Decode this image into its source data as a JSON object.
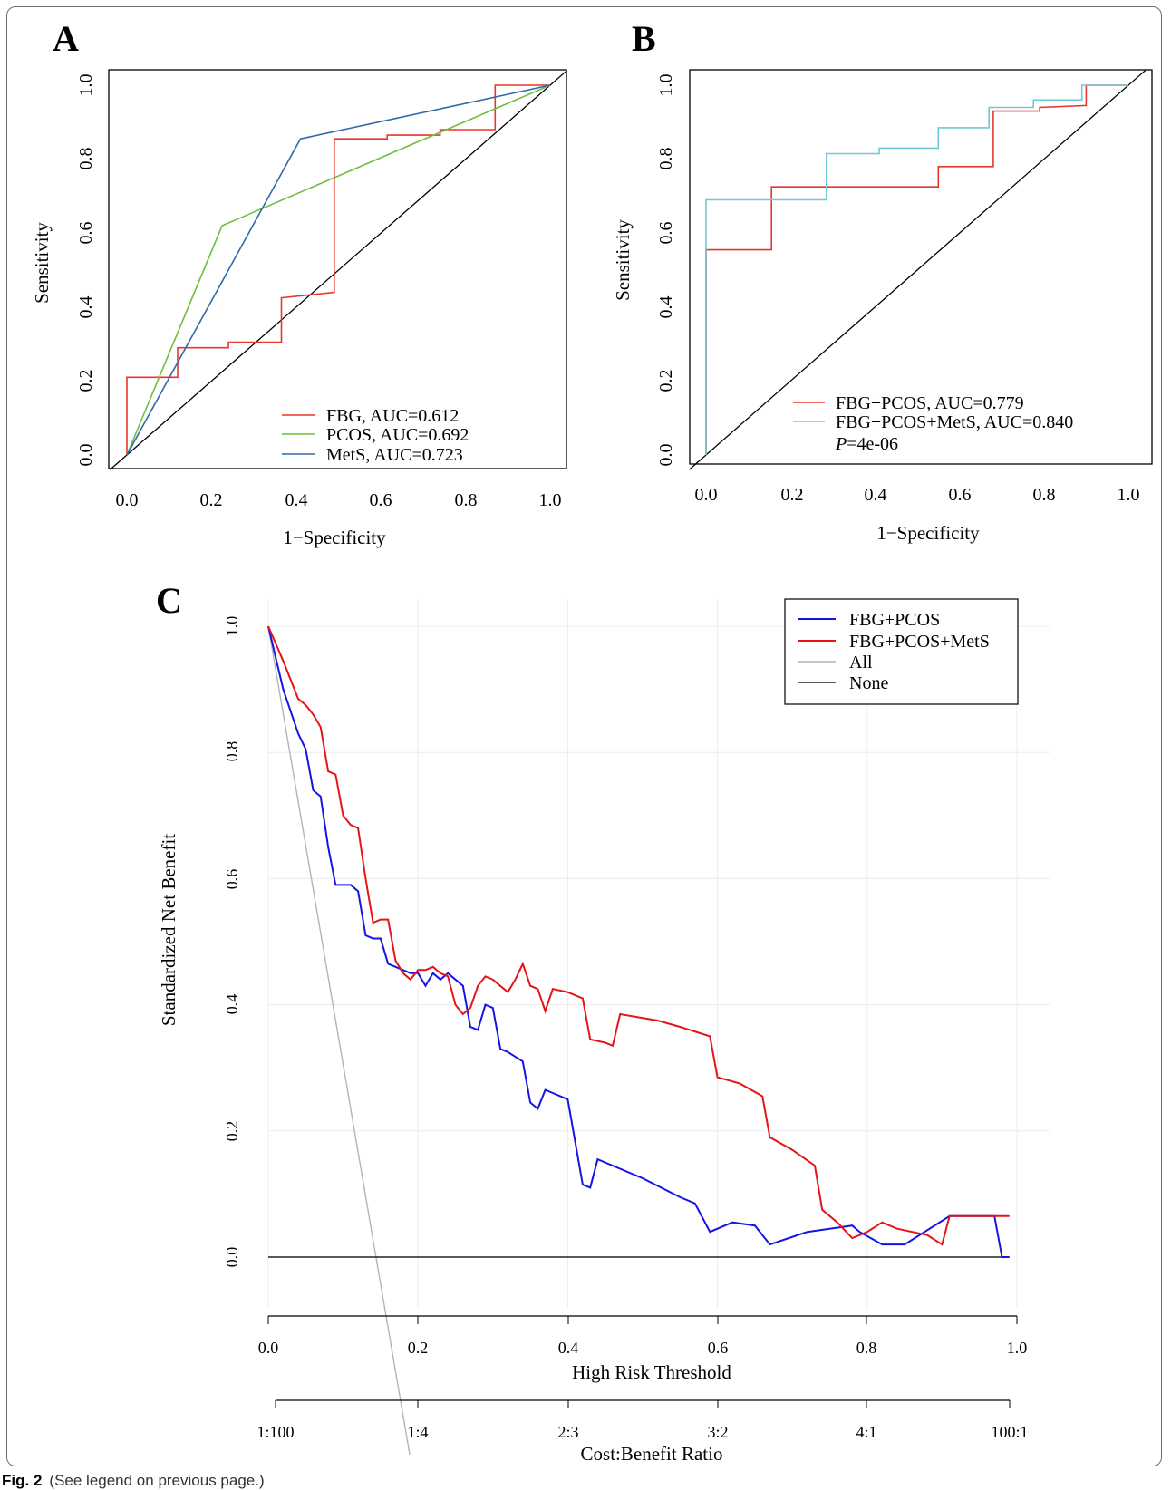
{
  "caption": {
    "label": "Fig. 2",
    "text": "(See legend on previous page.)"
  },
  "chart_data": [
    {
      "panel": "A",
      "type": "line",
      "xlabel": "1−Specificity",
      "ylabel": "Sensitivity",
      "xlim": [
        0,
        1
      ],
      "ylim": [
        0,
        1
      ],
      "xticks": [
        "0.0",
        "0.2",
        "0.4",
        "0.6",
        "0.8",
        "1.0"
      ],
      "yticks": [
        "0.0",
        "0.2",
        "0.4",
        "0.6",
        "0.8",
        "1.0"
      ],
      "legend_position": "bottom-right",
      "diagonal_color": "#000000",
      "series": [
        {
          "name": "FBG, AUC=0.612",
          "color": "#e8362c",
          "step": true,
          "points": [
            [
              0,
              0
            ],
            [
              0,
              0.21
            ],
            [
              0.12,
              0.21
            ],
            [
              0.12,
              0.29
            ],
            [
              0.24,
              0.29
            ],
            [
              0.24,
              0.305
            ],
            [
              0.365,
              0.305
            ],
            [
              0.365,
              0.425
            ],
            [
              0.49,
              0.44
            ],
            [
              0.49,
              0.855
            ],
            [
              0.615,
              0.855
            ],
            [
              0.615,
              0.865
            ],
            [
              0.74,
              0.865
            ],
            [
              0.74,
              0.88
            ],
            [
              0.87,
              0.88
            ],
            [
              0.87,
              1
            ],
            [
              1,
              1
            ]
          ]
        },
        {
          "name": "PCOS, AUC=0.692",
          "color": "#6cbf3c",
          "step": false,
          "points": [
            [
              0,
              0
            ],
            [
              0.225,
              0.62
            ],
            [
              1,
              1
            ]
          ]
        },
        {
          "name": "MetS, AUC=0.723",
          "color": "#2e6aa8",
          "step": false,
          "points": [
            [
              0,
              0
            ],
            [
              0.41,
              0.855
            ],
            [
              1,
              1
            ]
          ]
        }
      ]
    },
    {
      "panel": "B",
      "type": "line",
      "xlabel": "1−Specificity",
      "ylabel": "Sensitivity",
      "xlim": [
        0,
        1
      ],
      "ylim": [
        0,
        1
      ],
      "xticks": [
        "0.0",
        "0.2",
        "0.4",
        "0.6",
        "0.8",
        "1.0"
      ],
      "yticks": [
        "0.0",
        "0.2",
        "0.4",
        "0.6",
        "0.8",
        "1.0"
      ],
      "legend_position": "bottom-right",
      "annotation_prefix": "P",
      "annotation_value": "=4e-06",
      "series": [
        {
          "name": "FBG+PCOS, AUC=0.779",
          "color": "#e8362c",
          "step": true,
          "points": [
            [
              0,
              0
            ],
            [
              0,
              0.555
            ],
            [
              0.155,
              0.555
            ],
            [
              0.155,
              0.725
            ],
            [
              0.55,
              0.725
            ],
            [
              0.55,
              0.78
            ],
            [
              0.68,
              0.78
            ],
            [
              0.68,
              0.93
            ],
            [
              0.79,
              0.93
            ],
            [
              0.79,
              0.94
            ],
            [
              0.9,
              0.945
            ],
            [
              0.9,
              1
            ],
            [
              1,
              1
            ]
          ]
        },
        {
          "name": "FBG+PCOS+MetS, AUC=0.840",
          "color": "#72c7d6",
          "step": true,
          "points": [
            [
              0,
              0
            ],
            [
              0,
              0.69
            ],
            [
              0.285,
              0.69
            ],
            [
              0.285,
              0.815
            ],
            [
              0.41,
              0.815
            ],
            [
              0.41,
              0.83
            ],
            [
              0.55,
              0.83
            ],
            [
              0.55,
              0.885
            ],
            [
              0.67,
              0.885
            ],
            [
              0.67,
              0.94
            ],
            [
              0.775,
              0.94
            ],
            [
              0.775,
              0.96
            ],
            [
              0.89,
              0.96
            ],
            [
              0.89,
              1
            ],
            [
              1,
              1
            ]
          ]
        }
      ]
    },
    {
      "panel": "C",
      "type": "line",
      "xlabel": "High Risk Threshold",
      "ylabel": "Standardized Net Benefit",
      "x2label": "Cost:Benefit Ratio",
      "xlim": [
        0,
        1
      ],
      "ylim": [
        -0.09,
        1.04
      ],
      "xticks": [
        "0.0",
        "0.2",
        "0.4",
        "0.6",
        "0.8",
        "1.0"
      ],
      "yticks": [
        "0.0",
        "0.2",
        "0.4",
        "0.6",
        "0.8",
        "1.0"
      ],
      "x2ticks": [
        "1:100",
        "1:4",
        "2:3",
        "3:2",
        "4:1",
        "100:1"
      ],
      "legend_position": "top-right",
      "grid": true,
      "series": [
        {
          "name": "FBG+PCOS",
          "color": "#1414e6",
          "points": [
            [
              0,
              1
            ],
            [
              0.02,
              0.9
            ],
            [
              0.04,
              0.83
            ],
            [
              0.05,
              0.805
            ],
            [
              0.06,
              0.74
            ],
            [
              0.07,
              0.73
            ],
            [
              0.08,
              0.65
            ],
            [
              0.09,
              0.59
            ],
            [
              0.1,
              0.59
            ],
            [
              0.11,
              0.59
            ],
            [
              0.12,
              0.58
            ],
            [
              0.13,
              0.51
            ],
            [
              0.14,
              0.505
            ],
            [
              0.15,
              0.505
            ],
            [
              0.16,
              0.465
            ],
            [
              0.18,
              0.455
            ],
            [
              0.19,
              0.45
            ],
            [
              0.2,
              0.45
            ],
            [
              0.21,
              0.43
            ],
            [
              0.22,
              0.45
            ],
            [
              0.23,
              0.44
            ],
            [
              0.24,
              0.45
            ],
            [
              0.25,
              0.44
            ],
            [
              0.26,
              0.43
            ],
            [
              0.27,
              0.365
            ],
            [
              0.28,
              0.36
            ],
            [
              0.29,
              0.4
            ],
            [
              0.3,
              0.395
            ],
            [
              0.31,
              0.33
            ],
            [
              0.32,
              0.325
            ],
            [
              0.34,
              0.31
            ],
            [
              0.35,
              0.245
            ],
            [
              0.36,
              0.235
            ],
            [
              0.37,
              0.265
            ],
            [
              0.38,
              0.26
            ],
            [
              0.4,
              0.25
            ],
            [
              0.42,
              0.115
            ],
            [
              0.43,
              0.11
            ],
            [
              0.44,
              0.155
            ],
            [
              0.5,
              0.125
            ],
            [
              0.55,
              0.095
            ],
            [
              0.57,
              0.085
            ],
            [
              0.59,
              0.04
            ],
            [
              0.62,
              0.055
            ],
            [
              0.65,
              0.05
            ],
            [
              0.67,
              0.02
            ],
            [
              0.72,
              0.04
            ],
            [
              0.75,
              0.045
            ],
            [
              0.78,
              0.05
            ],
            [
              0.79,
              0.04
            ],
            [
              0.82,
              0.02
            ],
            [
              0.85,
              0.02
            ],
            [
              0.91,
              0.065
            ],
            [
              0.97,
              0.065
            ],
            [
              0.98,
              0
            ],
            [
              0.99,
              0
            ]
          ]
        },
        {
          "name": "FBG+PCOS+MetS",
          "color": "#e61414",
          "points": [
            [
              0,
              1
            ],
            [
              0.02,
              0.945
            ],
            [
              0.04,
              0.885
            ],
            [
              0.05,
              0.875
            ],
            [
              0.06,
              0.86
            ],
            [
              0.07,
              0.84
            ],
            [
              0.08,
              0.77
            ],
            [
              0.09,
              0.765
            ],
            [
              0.1,
              0.7
            ],
            [
              0.11,
              0.685
            ],
            [
              0.12,
              0.68
            ],
            [
              0.13,
              0.6
            ],
            [
              0.14,
              0.53
            ],
            [
              0.15,
              0.535
            ],
            [
              0.16,
              0.535
            ],
            [
              0.17,
              0.47
            ],
            [
              0.18,
              0.45
            ],
            [
              0.19,
              0.44
            ],
            [
              0.2,
              0.455
            ],
            [
              0.21,
              0.455
            ],
            [
              0.22,
              0.46
            ],
            [
              0.23,
              0.45
            ],
            [
              0.24,
              0.445
            ],
            [
              0.25,
              0.4
            ],
            [
              0.26,
              0.385
            ],
            [
              0.27,
              0.395
            ],
            [
              0.28,
              0.43
            ],
            [
              0.29,
              0.445
            ],
            [
              0.3,
              0.44
            ],
            [
              0.32,
              0.42
            ],
            [
              0.33,
              0.44
            ],
            [
              0.34,
              0.465
            ],
            [
              0.35,
              0.43
            ],
            [
              0.36,
              0.425
            ],
            [
              0.37,
              0.39
            ],
            [
              0.38,
              0.425
            ],
            [
              0.4,
              0.42
            ],
            [
              0.42,
              0.41
            ],
            [
              0.43,
              0.345
            ],
            [
              0.45,
              0.34
            ],
            [
              0.46,
              0.335
            ],
            [
              0.47,
              0.385
            ],
            [
              0.52,
              0.375
            ],
            [
              0.55,
              0.365
            ],
            [
              0.59,
              0.35
            ],
            [
              0.6,
              0.285
            ],
            [
              0.63,
              0.275
            ],
            [
              0.66,
              0.255
            ],
            [
              0.67,
              0.19
            ],
            [
              0.7,
              0.17
            ],
            [
              0.73,
              0.145
            ],
            [
              0.74,
              0.075
            ],
            [
              0.76,
              0.055
            ],
            [
              0.78,
              0.03
            ],
            [
              0.8,
              0.04
            ],
            [
              0.82,
              0.055
            ],
            [
              0.84,
              0.045
            ],
            [
              0.88,
              0.035
            ],
            [
              0.9,
              0.02
            ],
            [
              0.91,
              0.065
            ],
            [
              0.99,
              0.065
            ]
          ]
        },
        {
          "name": "All",
          "color": "#b4b4b4",
          "points": [
            [
              0,
              1
            ],
            [
              0.19,
              -0.32
            ]
          ]
        },
        {
          "name": "None",
          "color": "#222222",
          "points": [
            [
              0,
              0
            ],
            [
              0.99,
              0
            ]
          ]
        }
      ]
    }
  ]
}
